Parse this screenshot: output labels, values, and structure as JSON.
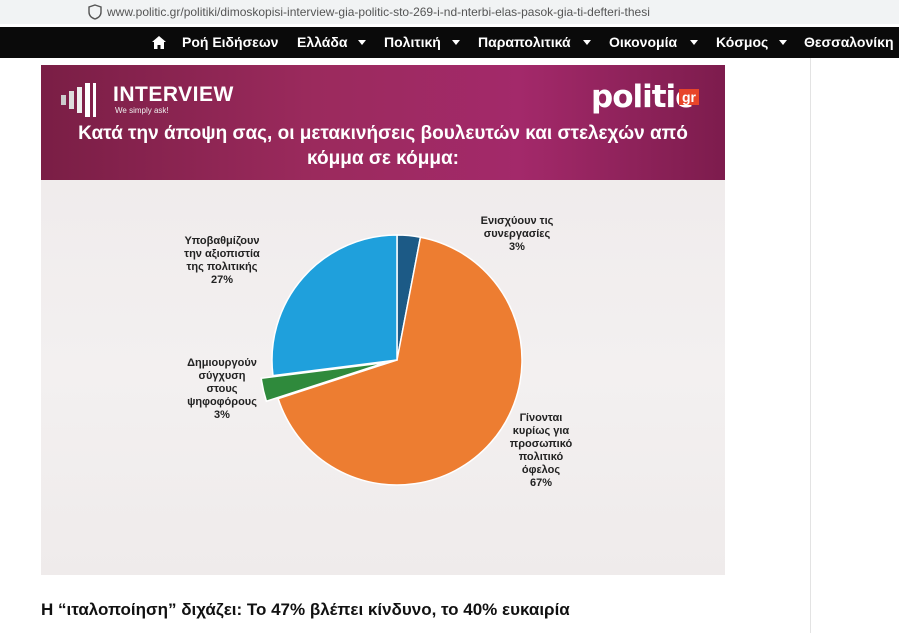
{
  "browser": {
    "url": "www.politic.gr/politiki/dimoskopisi-interview-gia-politic-sto-269-i-nd-nterbi-elas-pasok-gia-ti-defteri-thesi"
  },
  "nav": {
    "items": [
      "Ροή Ειδήσεων",
      "Ελλάδα",
      "Πολιτική",
      "Παραπολιτικά",
      "Οικονομία",
      "Κόσμος",
      "Θεσσαλονίκη"
    ]
  },
  "image": {
    "brand": "INTERVIEW",
    "slogan": "We simply ask!",
    "logo": "politic",
    "logo_suffix": "gr"
  },
  "chart_data": {
    "type": "pie",
    "title": "Κατά την άποψη σας, οι μετακινήσεις βουλευτών και στελεχών από\nκόμμα σε κόμμα:",
    "categories": [
      "Ενισχύουν τις\nσυνεργασίες",
      "Γίνονται\nκυρίως για\nπροσωπικό\nπολιτικό\nόφελος",
      "Δημιουργούν\nσύγχυση\nστους\nψηφοφόρους",
      "Υποβαθμίζουν\nτην αξιοπιστία\nτης πολιτικής"
    ],
    "values": [
      3,
      67,
      3,
      27
    ],
    "value_labels": [
      "3%",
      "67%",
      "3%",
      "27%"
    ],
    "colors": [
      "#1c5a86",
      "#ed7d31",
      "#2f8a3c",
      "#1fa0dc"
    ]
  },
  "article": {
    "heading": "Η “ιταλοποίηση” διχάζει: Το 47% βλέπει κίνδυνο, το 40% ευκαιρία"
  }
}
